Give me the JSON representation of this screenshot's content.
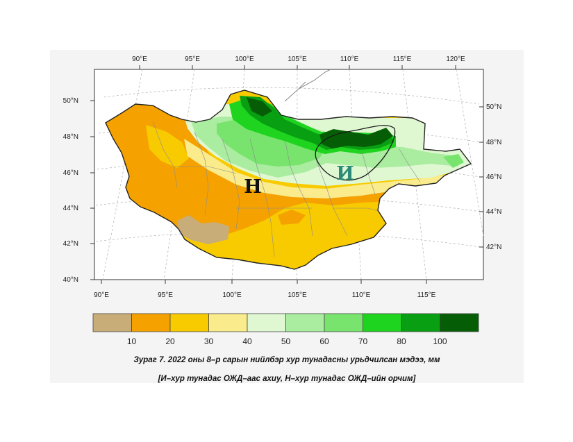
{
  "map": {
    "top_lon_labels": [
      "90°E",
      "95°E",
      "100°E",
      "105°E",
      "110°E",
      "115°E",
      "120°E"
    ],
    "bottom_lon_labels": [
      "90°E",
      "95°E",
      "100°E",
      "105°E",
      "110°E",
      "115°E"
    ],
    "left_lat_labels": [
      "50°N",
      "48°N",
      "46°N",
      "44°N",
      "42°N",
      "40°N"
    ],
    "right_lat_labels": [
      "50°N",
      "48°N",
      "46°N",
      "44°N",
      "42°N"
    ],
    "label_N": "Н",
    "label_I": "И",
    "colors": {
      "tan": "#c8ad78",
      "orange": "#f5a200",
      "gold": "#f8cb00",
      "lightyellow": "#faeb8c",
      "palegreen": "#dff8d2",
      "lightgreen": "#aaeca0",
      "midgreen": "#78e46e",
      "brightgreen": "#1ed41e",
      "green": "#08a012",
      "darkgreen": "#055e06"
    }
  },
  "legend": {
    "colors": [
      "#c8ad78",
      "#f5a200",
      "#f8cb00",
      "#faeb8c",
      "#dff8d2",
      "#aaeca0",
      "#78e46e",
      "#1ed41e",
      "#08a012",
      "#055e06"
    ],
    "labels": [
      "10",
      "20",
      "30",
      "40",
      "50",
      "60",
      "70",
      "80",
      "100"
    ]
  },
  "caption": {
    "line1": "Зураг 7. 2022 оны 8–р сарын нийлбэр хур тунадасны урьдчилсан мэдээ, мм",
    "line2": "[И–хур тунадас ОЖД–аас ахиу, Н–хур тунадас ОЖД–ийн орчим]"
  }
}
